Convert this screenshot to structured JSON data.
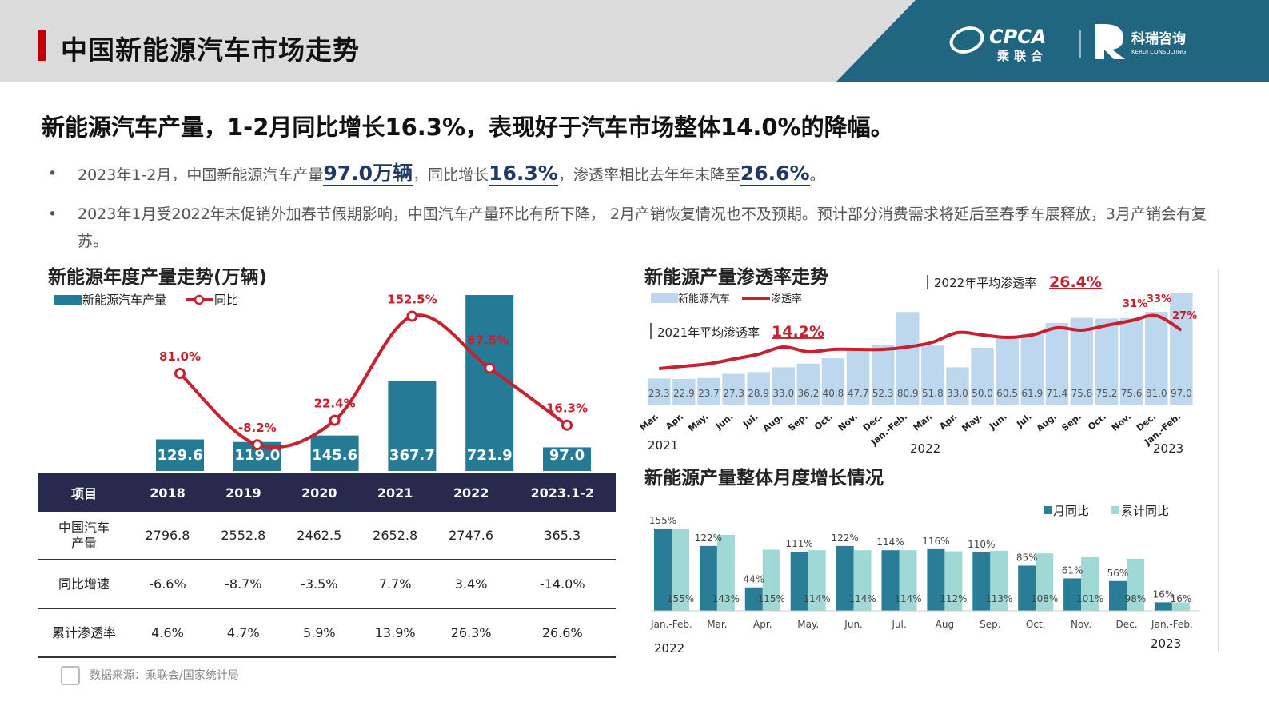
{
  "header": {
    "title": "中国新能源汽车市场走势",
    "logo_cpca": "CPCA",
    "logo_cpca_cn": "乘联合",
    "logo_kr": "科瑞咨询",
    "logo_kr_en": "KERUI CONSULTING"
  },
  "headline": "新能源汽车产量，1-2月同比增长16.3%，表现好于汽车市场整体14.0%的降幅。",
  "bullets": {
    "dot": "•",
    "b1": {
      "t1": "2023年1-2月，中国新能源汽车产量",
      "h1": "97.0万辆",
      "t2": "，同比增长",
      "h2": "16.3%",
      "t3": "，渗透率相比去年年末降至",
      "h3": "26.6%",
      "t4": "。"
    },
    "b2": "2023年1月受2022年末促销外加春节假期影响，中国汽车产量环比有所下降， 2月产销恢复情况也不及预期。预计部分消费需求将延后至春季车展释放，3月产销会有复苏。"
  },
  "colors": {
    "navy": "#262b4d",
    "teal": "#257a96",
    "red": "#c8202f",
    "lightblue": "#bdd7ee",
    "darkteal": "#2a7d97",
    "mint": "#9fd8d4",
    "band": "#216680"
  },
  "chart_data": [
    {
      "type": "bar",
      "title": "新能源年度产量走势(万辆)",
      "categories": [
        "2018",
        "2019",
        "2020",
        "2021",
        "2022",
        "2023.1-2"
      ],
      "series": [
        {
          "name": "新能源汽车产量",
          "values": [
            129.6,
            119.0,
            145.6,
            367.7,
            721.9,
            97.0
          ],
          "labels": [
            "129.6",
            "119.0",
            "145.6",
            "367.7",
            "721.9",
            "97.0"
          ]
        },
        {
          "name": "同比",
          "type": "line",
          "values": [
            81.0,
            -8.2,
            22.4,
            152.5,
            87.5,
            16.3
          ],
          "labels": [
            "81.0%",
            "-8.2%",
            "22.4%",
            "152.5%",
            "87.5%",
            "16.3%"
          ]
        }
      ]
    },
    {
      "type": "bar",
      "title": "新能源产量渗透率走势",
      "categories": [
        "Mar.",
        "Apr.",
        "May.",
        "Jun.",
        "Jul.",
        "Aug.",
        "Sep.",
        "Oct.",
        "Nov.",
        "Dec.",
        "Jan.-Feb.",
        "Mar.",
        "Apr.",
        "May.",
        "Jun.",
        "Jul.",
        "Aug.",
        "Sep.",
        "Oct.",
        "Nov.",
        "Dec.",
        "Jan.-Feb."
      ],
      "year_labels": [
        "2021",
        "2022",
        "2023"
      ],
      "series": [
        {
          "name": "新能源汽车",
          "values": [
            23.3,
            22.9,
            23.7,
            27.3,
            28.9,
            33.0,
            36.2,
            40.8,
            47.7,
            52.3,
            80.9,
            51.8,
            33.0,
            50.0,
            60.5,
            61.9,
            71.4,
            75.8,
            75.2,
            75.6,
            81.0,
            97.0
          ],
          "labels": [
            "23.3",
            "22.9",
            "23.7",
            "27.3",
            "28.9",
            "33.0",
            "36.2",
            "40.8",
            "47.7",
            "52.3",
            "80.9",
            "51.8",
            "33.0",
            "50.0",
            "60.5",
            "61.9",
            "71.4",
            "75.8",
            "75.2",
            "75.6",
            "81.0",
            "97.0"
          ]
        },
        {
          "name": "渗透率",
          "type": "line",
          "values": [
            11,
            12,
            13,
            15,
            17,
            20,
            18,
            19,
            19,
            19,
            20,
            22,
            26,
            25,
            24,
            25,
            28,
            27,
            29,
            31,
            33,
            27
          ]
        }
      ],
      "annotations": {
        "avg2021_label": "2021年平均渗透率",
        "avg2021_value": "14.2%",
        "avg2022_label": "2022年平均渗透率",
        "avg2022_value": "26.4%",
        "callouts": [
          "31%",
          "33%",
          "27%"
        ]
      }
    },
    {
      "type": "bar",
      "title": "新能源产量整体月度增长情况",
      "categories": [
        "Jan.-Feb.",
        "Mar.",
        "Apr.",
        "May.",
        "Jun.",
        "Jul.",
        "Aug",
        "Sep.",
        "Oct.",
        "Nov.",
        "Dec.",
        "Jan.-Feb."
      ],
      "year_labels": [
        "2022",
        "2023"
      ],
      "series": [
        {
          "name": "月同比",
          "values": [
            155,
            122,
            44,
            111,
            122,
            114,
            116,
            110,
            85,
            61,
            56,
            16
          ],
          "labels": [
            "155%",
            "122%",
            "44%",
            "111%",
            "122%",
            "114%",
            "116%",
            "110%",
            "85%",
            "61%",
            "56%",
            "16%"
          ]
        },
        {
          "name": "累计同比",
          "values": [
            155,
            143,
            115,
            114,
            114,
            114,
            112,
            113,
            108,
            101,
            98,
            16
          ],
          "labels": [
            "155%",
            "143%",
            "115%",
            "114%",
            "114%",
            "114%",
            "112%",
            "113%",
            "108%",
            "101%",
            "98%",
            "16%"
          ]
        }
      ]
    }
  ],
  "table": {
    "headers": [
      "项目",
      "2018",
      "2019",
      "2020",
      "2021",
      "2022",
      "2023.1-2"
    ],
    "rows": [
      {
        "label1": "中国汽车",
        "label2": "产量",
        "cells": [
          "2796.8",
          "2552.8",
          "2462.5",
          "2652.8",
          "2747.6",
          "365.3"
        ]
      },
      {
        "label1": "同比增速",
        "label2": "",
        "cells": [
          "-6.6%",
          "-8.7%",
          "-3.5%",
          "7.7%",
          "3.4%",
          "-14.0%"
        ]
      },
      {
        "label1": "累计渗透率",
        "label2": "",
        "cells": [
          "4.6%",
          "4.7%",
          "5.9%",
          "13.9%",
          "26.3%",
          "26.6%"
        ]
      }
    ]
  },
  "source": "数据来源：乘联会/国家统计局"
}
